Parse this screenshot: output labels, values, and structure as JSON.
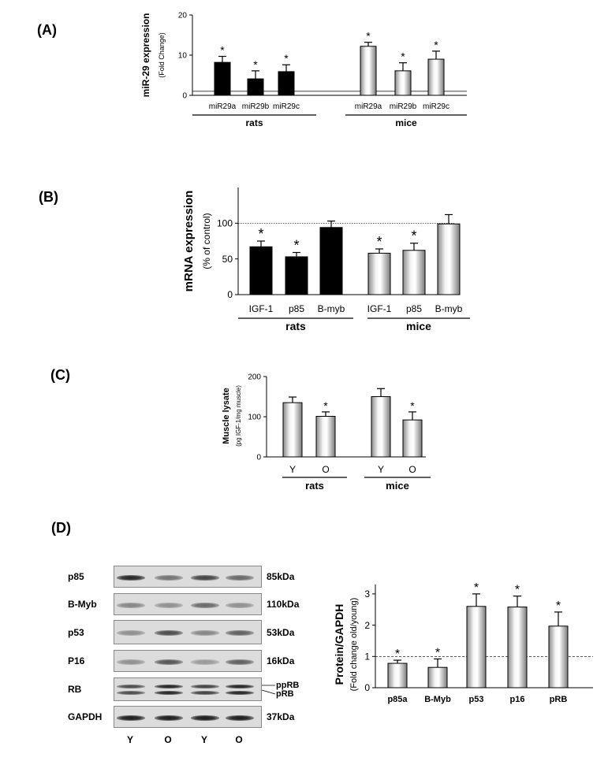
{
  "panels": {
    "a": "(A)",
    "b": "(B)",
    "c": "(C)",
    "d": "(D)"
  },
  "chart_data": [
    {
      "panel": "A",
      "type": "bar",
      "ylabel": "miR-29 expression",
      "ylabel_sub": "(Fold Change)",
      "ylim": [
        0,
        20
      ],
      "yticks": [
        0,
        10,
        20
      ],
      "reference_line": 1,
      "groups": [
        "rats",
        "mice"
      ],
      "categories": [
        "miR29a",
        "miR29b",
        "miR29c",
        "miR29a",
        "miR29b",
        "miR29c"
      ],
      "group_of": [
        0,
        0,
        0,
        1,
        1,
        1
      ],
      "values": [
        8.2,
        4.1,
        5.9,
        12.2,
        6.1,
        9.0
      ],
      "errors": [
        1.5,
        2.0,
        1.7,
        1.0,
        2.0,
        2.0
      ],
      "sig": [
        "*",
        "*",
        "*",
        "*",
        "*",
        "*"
      ]
    },
    {
      "panel": "B",
      "type": "bar",
      "ylabel": "mRNA expression",
      "ylabel_sub": "(% of control)",
      "ylim": [
        0,
        150
      ],
      "yticks": [
        0,
        50,
        100
      ],
      "reference_line": 100,
      "groups": [
        "rats",
        "mice"
      ],
      "categories": [
        "IGF-1",
        "p85",
        "B-myb",
        "IGF-1",
        "p85",
        "B-myb"
      ],
      "group_of": [
        0,
        0,
        0,
        1,
        1,
        1
      ],
      "values": [
        67,
        53,
        94,
        58,
        62,
        99
      ],
      "errors": [
        8,
        6,
        9,
        6,
        10,
        13
      ],
      "sig": [
        "*",
        "*",
        "",
        "*",
        "*",
        ""
      ]
    },
    {
      "panel": "C",
      "type": "bar",
      "ylabel": "Muscle lysate",
      "ylabel_sub": "(pg IGF-1/mg muscle)",
      "ylim": [
        0,
        200
      ],
      "yticks": [
        0,
        100,
        200
      ],
      "groups": [
        "rats",
        "mice"
      ],
      "categories": [
        "Y",
        "O",
        "Y",
        "O"
      ],
      "group_of": [
        0,
        0,
        1,
        1
      ],
      "values": [
        135,
        101,
        150,
        92
      ],
      "errors": [
        14,
        11,
        20,
        20
      ],
      "sig": [
        "",
        "*",
        "",
        "*"
      ]
    },
    {
      "panel": "D",
      "type": "bar",
      "ylabel": "Protein/GAPDH",
      "ylabel_sub": "(Fold change old/young)",
      "ylim": [
        0,
        3.3
      ],
      "yticks": [
        0,
        1,
        2,
        3
      ],
      "reference_line": 1,
      "categories": [
        "p85a",
        "B-Myb",
        "p53",
        "p16",
        "pRB"
      ],
      "values": [
        0.78,
        0.65,
        2.6,
        2.58,
        1.97
      ],
      "errors": [
        0.1,
        0.27,
        0.4,
        0.35,
        0.45
      ],
      "sig": [
        "*",
        "*",
        "*",
        "*",
        "*"
      ]
    }
  ],
  "blot": {
    "rows": [
      {
        "name": "p85",
        "kda": "85kDa",
        "intensity": [
          0.95,
          0.55,
          0.8,
          0.6
        ]
      },
      {
        "name": "B-Myb",
        "kda": "110kDa",
        "intensity": [
          0.45,
          0.4,
          0.6,
          0.4
        ]
      },
      {
        "name": "p53",
        "kda": "53kDa",
        "intensity": [
          0.4,
          0.75,
          0.45,
          0.65
        ]
      },
      {
        "name": "P16",
        "kda": "16kDa",
        "intensity": [
          0.4,
          0.7,
          0.35,
          0.65
        ]
      },
      {
        "name": "RB",
        "kda": "",
        "intensity": [
          0.75,
          0.95,
          0.8,
          0.95
        ]
      },
      {
        "name": "GAPDH",
        "kda": "37kDa",
        "intensity": [
          1,
          1,
          1,
          1
        ]
      }
    ],
    "rb_labels": [
      "ppRB",
      "pRB"
    ],
    "lanes": [
      "Y",
      "O",
      "Y",
      "O"
    ]
  }
}
